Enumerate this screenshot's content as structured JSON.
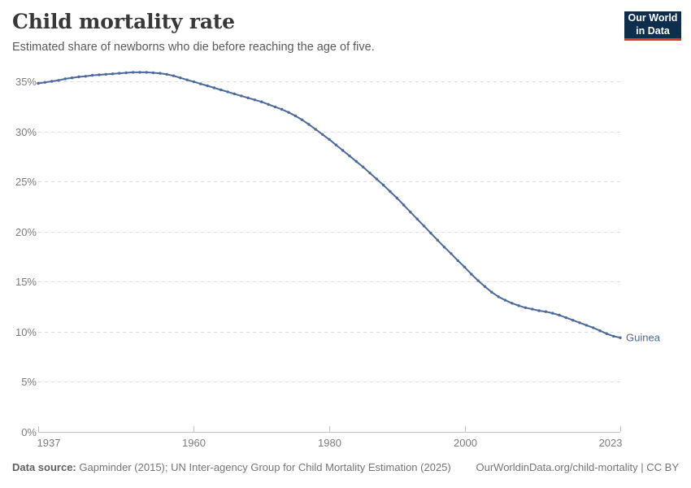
{
  "header": {
    "title": "Child mortality rate",
    "subtitle": "Estimated share of newborns who die before reaching the age of five."
  },
  "logo": {
    "line1": "Our World",
    "line2": "in Data"
  },
  "colors": {
    "line": "#4C6A9C",
    "grid": "#dddddd",
    "axis": "#c2c2c2",
    "tick_label": "#7d7d7d",
    "logo_bg": "#0f2e4e",
    "logo_red": "#dc3a23"
  },
  "chart_data": {
    "type": "line",
    "title": "Child mortality rate",
    "subtitle": "Estimated share of newborns who die before reaching the age of five.",
    "unit": "%",
    "grid": true,
    "legend_position": "end-of-line",
    "x_range": [
      1937,
      2023
    ],
    "ylim": [
      0,
      35
    ],
    "yticks": [
      0,
      5,
      10,
      15,
      20,
      25,
      30,
      35
    ],
    "ytick_suffix": "%",
    "xticks": [
      1937,
      1960,
      1980,
      2000,
      2023
    ],
    "series": [
      {
        "name": "Guinea",
        "color": "#4C6A9C",
        "x_start": 1937,
        "x_step": 1,
        "values": [
          34.8,
          34.9,
          35.0,
          35.1,
          35.25,
          35.35,
          35.45,
          35.5,
          35.6,
          35.65,
          35.7,
          35.75,
          35.8,
          35.85,
          35.9,
          35.9,
          35.9,
          35.85,
          35.8,
          35.7,
          35.55,
          35.35,
          35.15,
          34.95,
          34.75,
          34.55,
          34.35,
          34.15,
          33.95,
          33.75,
          33.55,
          33.35,
          33.15,
          32.95,
          32.7,
          32.45,
          32.2,
          31.9,
          31.55,
          31.15,
          30.7,
          30.2,
          29.7,
          29.2,
          28.65,
          28.1,
          27.55,
          27.0,
          26.45,
          25.85,
          25.25,
          24.65,
          24.0,
          23.35,
          22.65,
          21.95,
          21.25,
          20.55,
          19.85,
          19.15,
          18.45,
          17.8,
          17.1,
          16.45,
          15.75,
          15.1,
          14.5,
          13.95,
          13.5,
          13.15,
          12.85,
          12.6,
          12.4,
          12.25,
          12.1,
          12.0,
          11.85,
          11.65,
          11.4,
          11.15,
          10.9,
          10.65,
          10.4,
          10.1,
          9.8,
          9.55,
          9.4
        ]
      }
    ]
  },
  "footer": {
    "data_source_label": "Data source:",
    "data_source_text": "Gapminder (2015); UN Inter-agency Group for Child Mortality Estimation (2025)",
    "link_text": "OurWorldinData.org/child-mortality | CC BY"
  }
}
